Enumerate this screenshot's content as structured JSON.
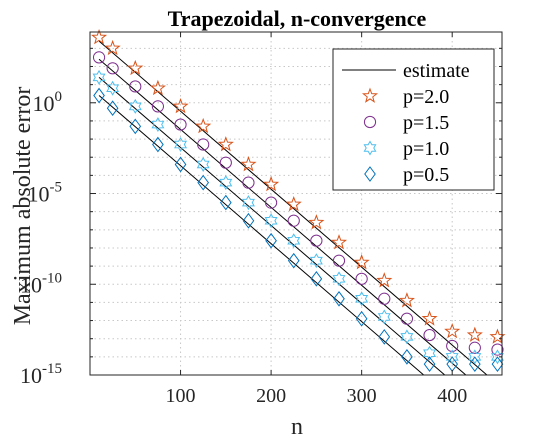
{
  "chart_data": {
    "type": "scatter",
    "title": "Trapezoidal, n-convergence",
    "xlabel": "n",
    "ylabel": "Maximum absolute error",
    "xlim": [
      0,
      455
    ],
    "ylim_log10": [
      -15,
      3.9
    ],
    "y_scale": "log",
    "grid": "dotted",
    "legend_position": "top-right",
    "x_ticks": [
      {
        "value": 100,
        "label": "100"
      },
      {
        "value": 200,
        "label": "200"
      },
      {
        "value": 300,
        "label": "300"
      },
      {
        "value": 400,
        "label": "400"
      }
    ],
    "y_ticks": [
      {
        "exp": 0,
        "base": "10",
        "sup": "0"
      },
      {
        "exp": -5,
        "base": "10",
        "sup": "-5"
      },
      {
        "exp": -10,
        "base": "10",
        "sup": "-10"
      },
      {
        "exp": -15,
        "base": "10",
        "sup": "-15"
      }
    ],
    "x": [
      10,
      25,
      50,
      75,
      100,
      125,
      150,
      175,
      200,
      225,
      250,
      275,
      300,
      325,
      350,
      375,
      400,
      425,
      450
    ],
    "estimate": {
      "name": "estimate",
      "color": "#000000",
      "lines": [
        {
          "x": [
            10,
            450
          ],
          "y_log10": [
            3.4,
            -15.5
          ]
        },
        {
          "x": [
            10,
            450
          ],
          "y_log10": [
            2.4,
            -16.5
          ]
        },
        {
          "x": [
            10,
            450
          ],
          "y_log10": [
            1.4,
            -17.5
          ]
        },
        {
          "x": [
            10,
            450
          ],
          "y_log10": [
            0.4,
            -18.5
          ]
        }
      ]
    },
    "series": [
      {
        "name": "p=2.0",
        "marker": "star",
        "color": "#d95319",
        "y_log10": [
          3.6,
          3.0,
          1.9,
          0.8,
          -0.2,
          -1.3,
          -2.3,
          -3.4,
          -4.5,
          -5.6,
          -6.6,
          -7.7,
          -8.8,
          -9.8,
          -10.9,
          -11.9,
          -12.6,
          -12.8,
          -12.9
        ]
      },
      {
        "name": "p=1.5",
        "marker": "circle",
        "color": "#7e2f8e",
        "y_log10": [
          2.5,
          1.9,
          0.9,
          -0.2,
          -1.2,
          -2.3,
          -3.3,
          -4.4,
          -5.5,
          -6.5,
          -7.6,
          -8.7,
          -9.7,
          -10.8,
          -11.9,
          -12.8,
          -13.4,
          -13.5,
          -13.6
        ]
      },
      {
        "name": "p=1.0",
        "marker": "hexagram",
        "color": "#4dbeee",
        "y_log10": [
          1.4,
          0.8,
          -0.2,
          -1.2,
          -2.3,
          -3.4,
          -4.4,
          -5.5,
          -6.5,
          -7.6,
          -8.7,
          -9.7,
          -10.8,
          -11.8,
          -12.9,
          -13.8,
          -14.0,
          -14.0,
          -14.0
        ]
      },
      {
        "name": "p=0.5",
        "marker": "diamond",
        "color": "#0072bd",
        "y_log10": [
          0.4,
          -0.3,
          -1.3,
          -2.3,
          -3.4,
          -4.4,
          -5.5,
          -6.5,
          -7.6,
          -8.7,
          -9.7,
          -10.8,
          -11.9,
          -12.9,
          -14.0,
          -14.4,
          -14.4,
          -14.4,
          -14.4
        ]
      }
    ]
  }
}
